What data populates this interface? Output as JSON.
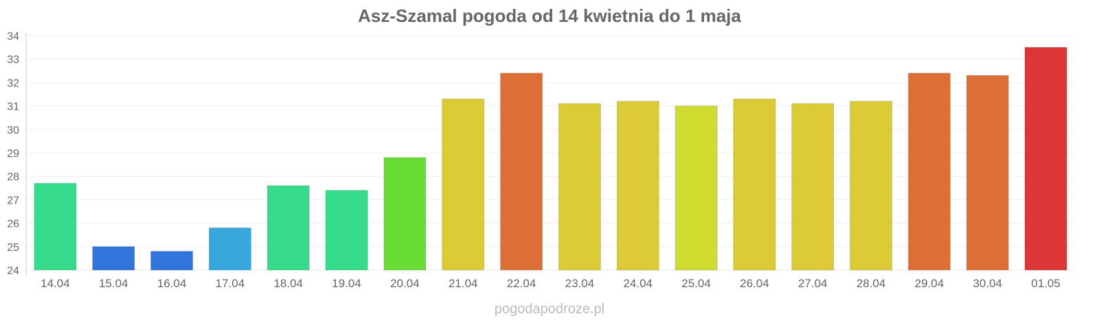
{
  "chart_data": {
    "type": "bar",
    "title": "Asz-Szamal pogoda od 14 kwietnia do 1 maja",
    "xlabel": "",
    "ylabel": "",
    "ylim": [
      24,
      34
    ],
    "yticks": [
      24,
      25,
      26,
      27,
      28,
      29,
      30,
      31,
      32,
      33,
      34
    ],
    "grid": true,
    "categories": [
      "14.04",
      "15.04",
      "16.04",
      "17.04",
      "18.04",
      "19.04",
      "20.04",
      "21.04",
      "22.04",
      "23.04",
      "24.04",
      "25.04",
      "26.04",
      "27.04",
      "28.04",
      "29.04",
      "30.04",
      "01.05"
    ],
    "values": [
      27.7,
      25.0,
      24.8,
      25.8,
      27.6,
      27.4,
      28.8,
      31.3,
      32.4,
      31.1,
      31.2,
      31.0,
      31.3,
      31.1,
      31.2,
      32.4,
      32.3,
      33.5
    ],
    "colors": [
      "#36dc8c",
      "#3074dc",
      "#3074dc",
      "#36a8dc",
      "#36dc8c",
      "#36dc8c",
      "#6adc36",
      "#dccb36",
      "#dc6e36",
      "#dccb36",
      "#dccb36",
      "#cfdc30",
      "#dccb36",
      "#dccb36",
      "#dccb36",
      "#dc6e36",
      "#dc6e36",
      "#dc3636"
    ]
  },
  "footer": "pogodapodroze.pl"
}
